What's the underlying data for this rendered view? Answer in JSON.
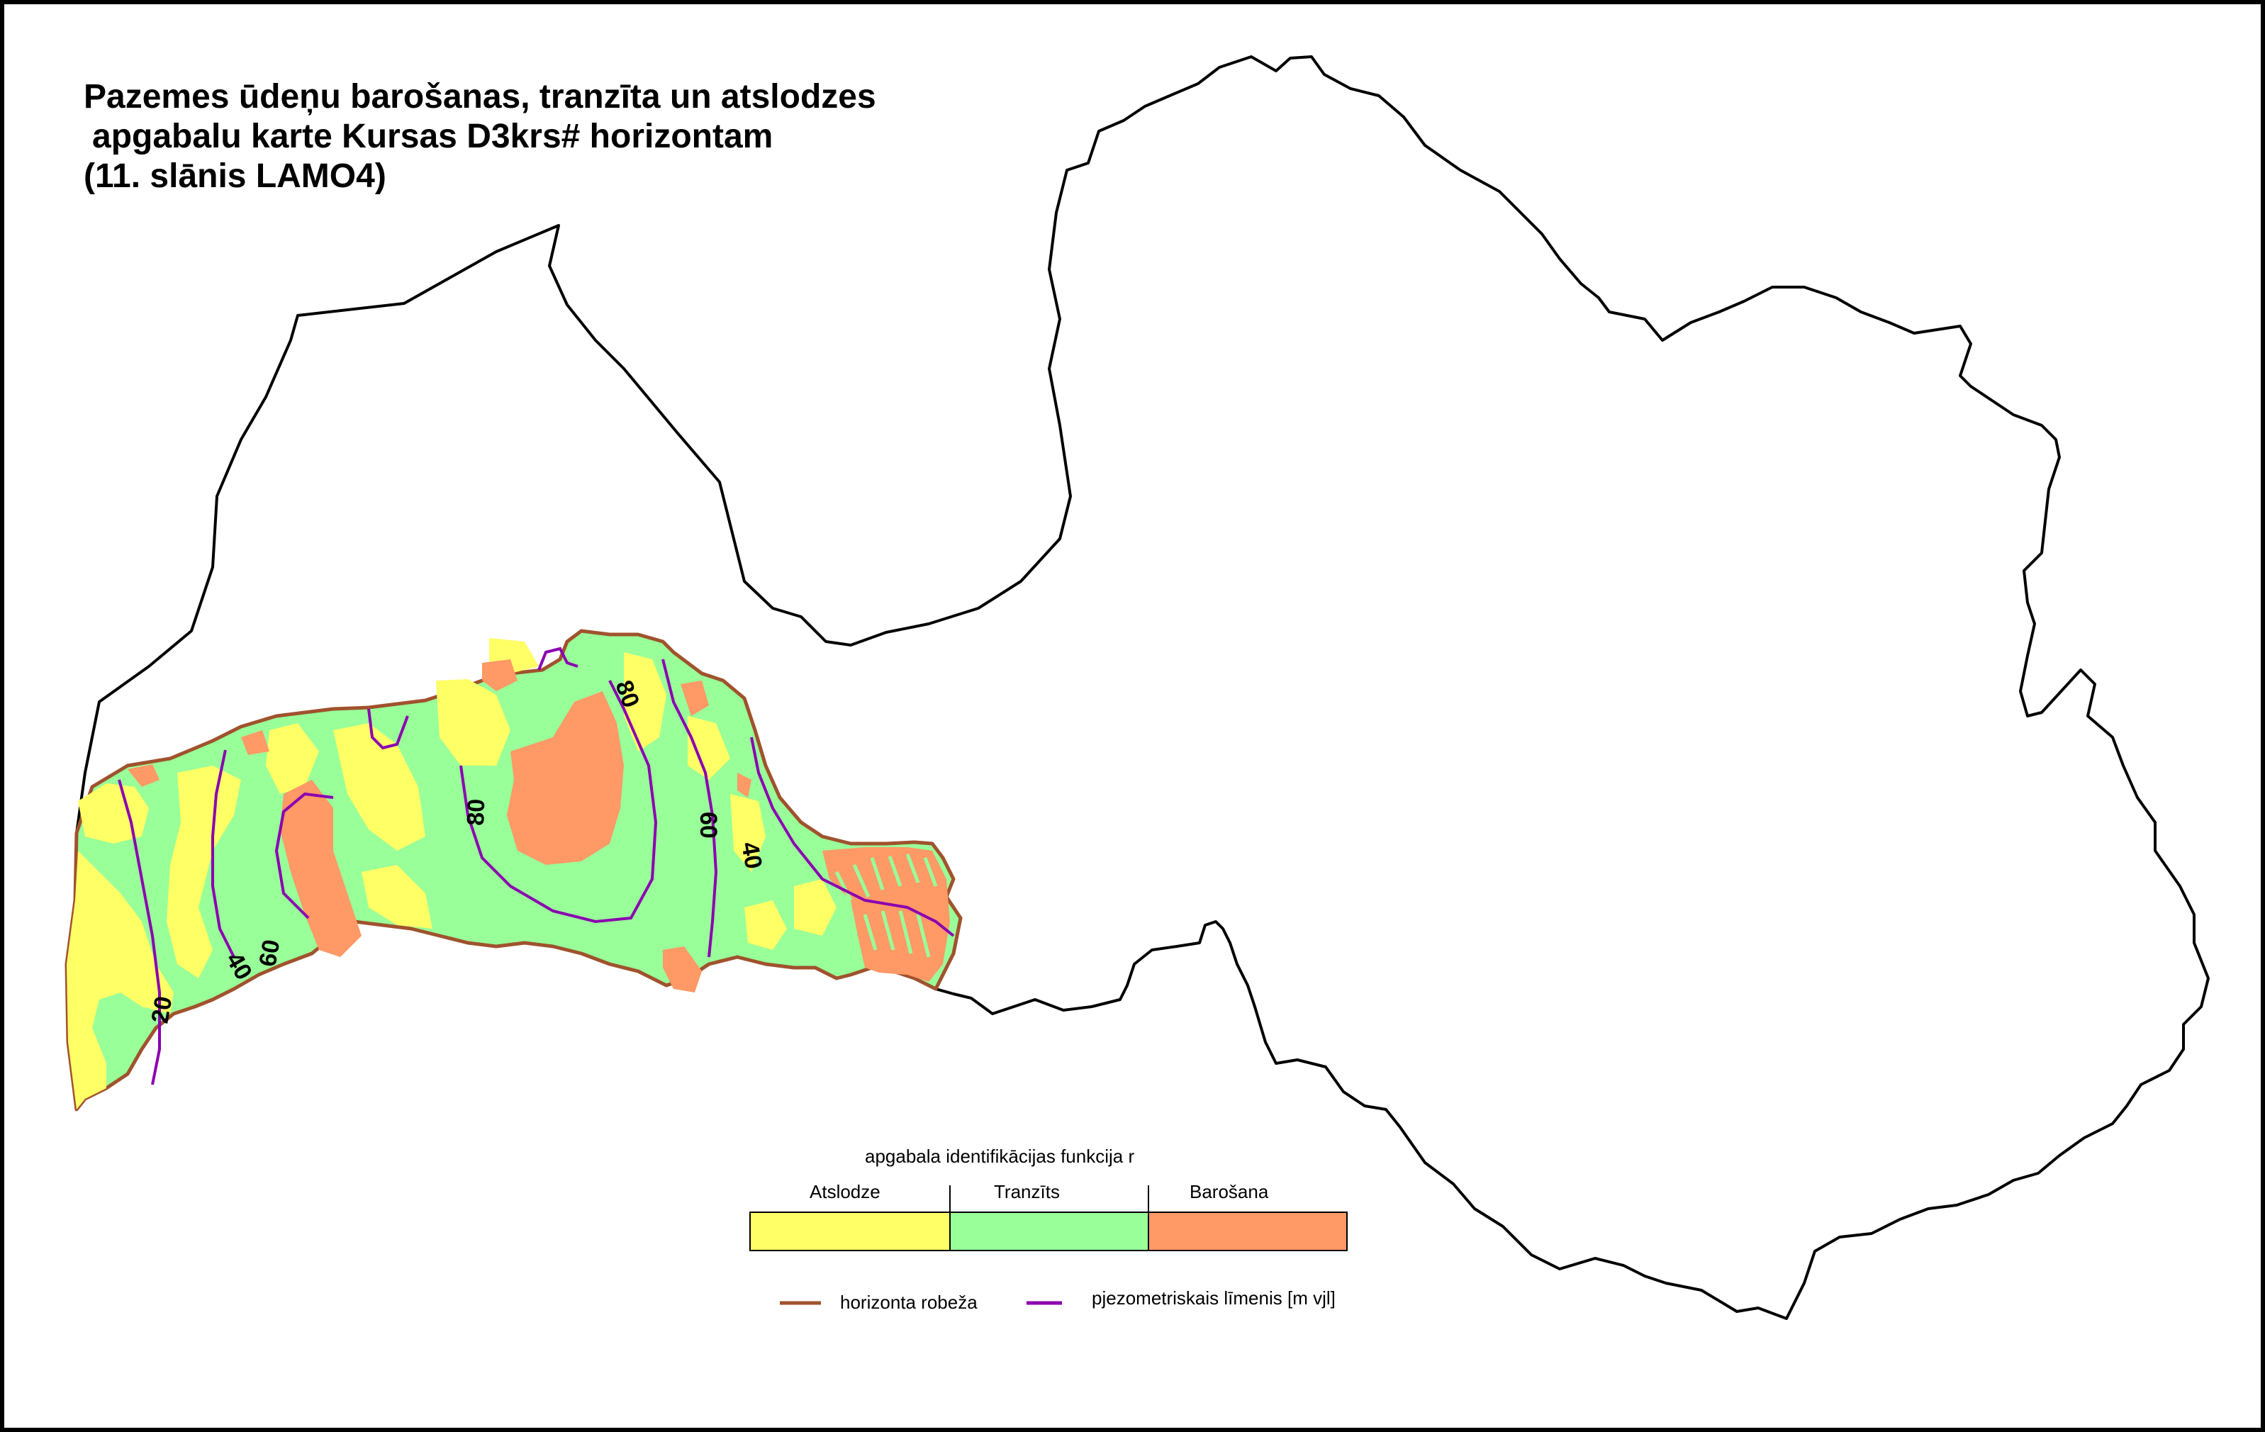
{
  "title": {
    "line1": "Pazemes ūdeņu barošanas, tranzīta un atslodzes",
    "line2": "apgabalu karte Kursas D3krs# horizontam",
    "line3": "(11. slānis LAMO4)"
  },
  "contours": {
    "label_20": "20",
    "label_40_west": "40",
    "label_60_west": "60",
    "label_80_mid": "80",
    "label_80_north": "80",
    "label_60_east": "60",
    "label_40_east": "40"
  },
  "legend": {
    "title": "apgabala identifikācijas funkcija r",
    "categories": [
      {
        "label": "Atslodze",
        "color": "#FFFF66"
      },
      {
        "label": "Tranzīts",
        "color": "#99FF99"
      },
      {
        "label": "Barošana",
        "color": "#FF9966"
      }
    ],
    "boundary_label": "horizonta robeža",
    "boundary_color": "#A0522D",
    "piezometric_label": "pjezometriskais līmenis [m vjl]",
    "piezometric_color": "#8B00B0"
  },
  "colors": {
    "country_outline": "#000000",
    "discharge": "#FFFF66",
    "transit": "#99FF99",
    "recharge": "#FF9966"
  }
}
